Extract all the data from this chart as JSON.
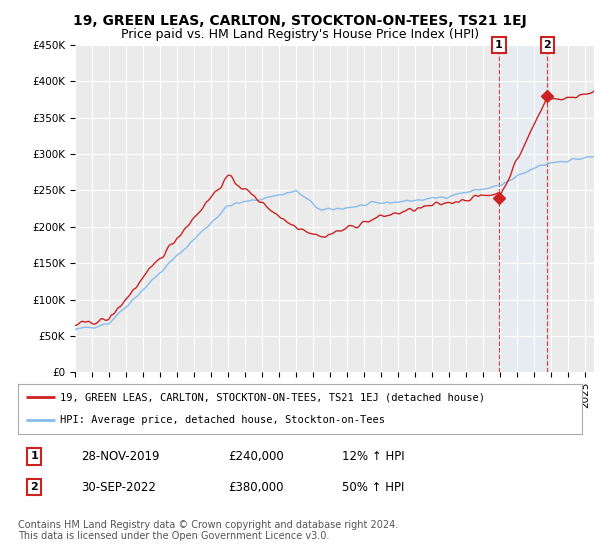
{
  "title": "19, GREEN LEAS, CARLTON, STOCKTON-ON-TEES, TS21 1EJ",
  "subtitle": "Price paid vs. HM Land Registry's House Price Index (HPI)",
  "ylim": [
    0,
    450000
  ],
  "yticks": [
    0,
    50000,
    100000,
    150000,
    200000,
    250000,
    300000,
    350000,
    400000,
    450000
  ],
  "ytick_labels": [
    "£0",
    "£50K",
    "£100K",
    "£150K",
    "£200K",
    "£250K",
    "£300K",
    "£350K",
    "£400K",
    "£450K"
  ],
  "xlim_start": 1995.0,
  "xlim_end": 2025.5,
  "background_color": "#ffffff",
  "plot_bg_color": "#ebebeb",
  "grid_color": "#ffffff",
  "hpi_color": "#88bbee",
  "price_color": "#cc2222",
  "sale1_date": 2019.92,
  "sale1_price": 240000,
  "sale1_label": "1",
  "sale2_date": 2022.75,
  "sale2_price": 380000,
  "sale2_label": "2",
  "legend_line1": "19, GREEN LEAS, CARLTON, STOCKTON-ON-TEES, TS21 1EJ (detached house)",
  "legend_line2": "HPI: Average price, detached house, Stockton-on-Tees",
  "table_row1": [
    "1",
    "28-NOV-2019",
    "£240,000",
    "12% ↑ HPI"
  ],
  "table_row2": [
    "2",
    "30-SEP-2022",
    "£380,000",
    "50% ↑ HPI"
  ],
  "footer": "Contains HM Land Registry data © Crown copyright and database right 2024.\nThis data is licensed under the Open Government Licence v3.0.",
  "title_fontsize": 10,
  "subtitle_fontsize": 9,
  "tick_fontsize": 7.5,
  "shaded_region_color": "#ddeeff",
  "noise_seed": 42
}
